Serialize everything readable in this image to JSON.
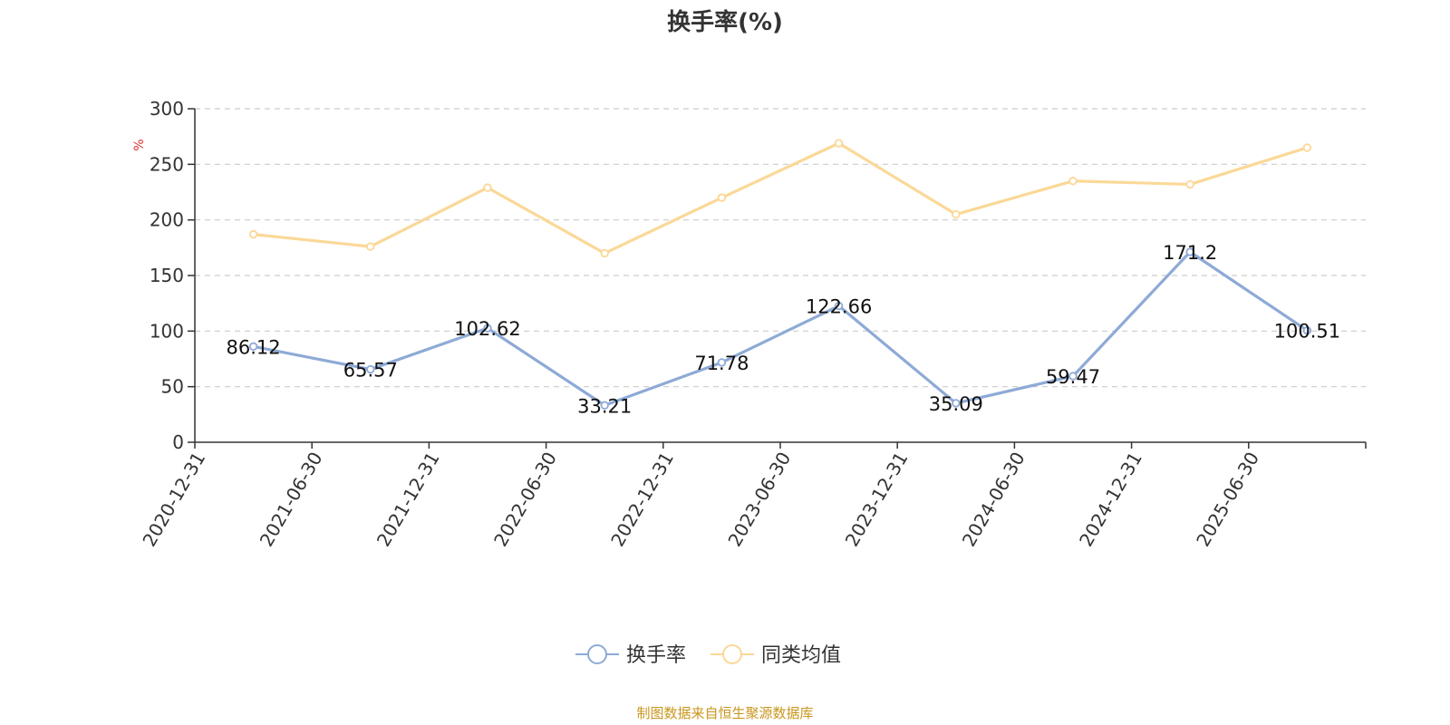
{
  "chart_data": {
    "type": "line",
    "title": "换手率(%)",
    "ylabel": "%",
    "xlabel": "",
    "ylim": [
      0,
      300
    ],
    "yticks": [
      0,
      50,
      100,
      150,
      200,
      250,
      300
    ],
    "grid": true,
    "legend_position": "bottom-center",
    "categories": [
      "2020-12-31",
      "2021-06-30",
      "2021-12-31",
      "2022-06-30",
      "2022-12-31",
      "2023-06-30",
      "2023-12-31",
      "2024-06-30",
      "2024-12-31",
      "2025-06-30"
    ],
    "series": [
      {
        "name": "换手率",
        "color": "#8eaad6",
        "values": [
          86.12,
          65.57,
          102.62,
          33.21,
          71.78,
          122.66,
          35.09,
          59.47,
          171.2,
          100.51
        ],
        "labels": [
          "86.12",
          "65.57",
          "102.62",
          "33.21",
          "71.78",
          "122.66",
          "35.09",
          "59.47",
          "171.2",
          "100.51"
        ]
      },
      {
        "name": "同类均值",
        "color": "#fbd897",
        "values": [
          187,
          176,
          229,
          170,
          220,
          269,
          205,
          235,
          232,
          265
        ]
      }
    ],
    "source": "制图数据来自恒生聚源数据库"
  }
}
